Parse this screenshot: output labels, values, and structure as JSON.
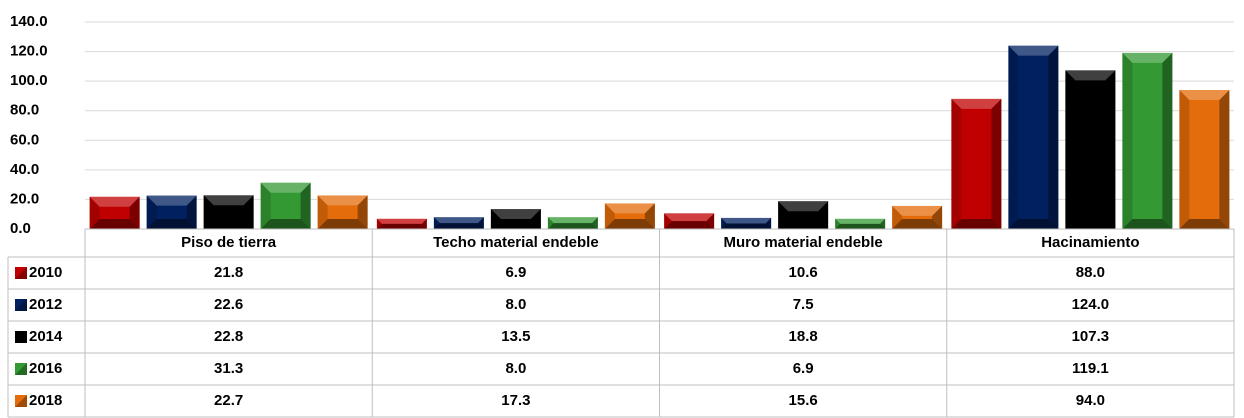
{
  "chart_data": {
    "type": "bar",
    "categories": [
      "Piso de tierra",
      "Techo material endeble",
      "Muro material endeble",
      "Hacinamiento"
    ],
    "series": [
      {
        "name": "2010",
        "color": "#c00000",
        "values": [
          21.8,
          6.9,
          10.6,
          88.0
        ],
        "value_labels": [
          "21.8",
          "6.9",
          "10.6",
          "88.0"
        ]
      },
      {
        "name": "2012",
        "color": "#002060",
        "values": [
          22.6,
          8.0,
          7.5,
          124.0
        ],
        "value_labels": [
          "22.6",
          "8.0",
          "7.5",
          "124.0"
        ]
      },
      {
        "name": "2014",
        "color": "#000000",
        "values": [
          22.8,
          13.5,
          18.8,
          107.3
        ],
        "value_labels": [
          "22.8",
          "13.5",
          "18.8",
          "107.3"
        ]
      },
      {
        "name": "2016",
        "color": "#339933",
        "values": [
          31.3,
          8.0,
          6.9,
          119.1
        ],
        "value_labels": [
          "31.3",
          "8.0",
          "6.9",
          "119.1"
        ]
      },
      {
        "name": "2018",
        "color": "#e46c0a",
        "values": [
          22.7,
          17.3,
          15.6,
          94.0
        ],
        "value_labels": [
          "22.7",
          "17.3",
          "15.6",
          "94.0"
        ]
      }
    ],
    "ylim": [
      0,
      140
    ],
    "yticks": [
      {
        "value": 0,
        "label": "0.0"
      },
      {
        "value": 20,
        "label": "20.0"
      },
      {
        "value": 40,
        "label": "40.0"
      },
      {
        "value": 60,
        "label": "60.0"
      },
      {
        "value": 80,
        "label": "80.0"
      },
      {
        "value": 100,
        "label": "100.0"
      },
      {
        "value": 120,
        "label": "120.0"
      },
      {
        "value": 140,
        "label": "140.0"
      }
    ],
    "grid": true
  }
}
